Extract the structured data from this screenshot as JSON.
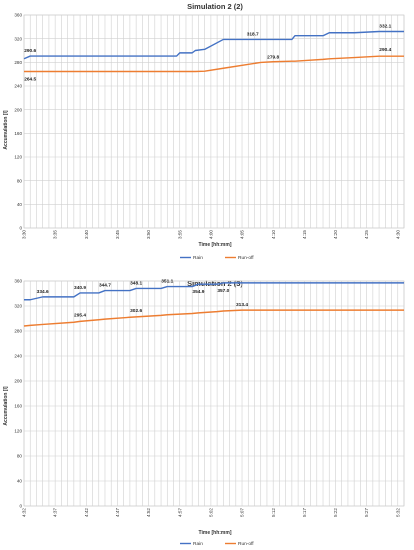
{
  "chart_data": [
    {
      "type": "line",
      "title": "Simulation 2 (2)",
      "xlabel": "Time [hh:mm]",
      "ylabel": "Accumulation [l]",
      "ylim": [
        0,
        360
      ],
      "yticks": [
        0,
        40,
        80,
        120,
        160,
        200,
        240,
        280,
        320,
        360
      ],
      "x_tick_labels": [
        "3:30",
        "3:35",
        "3:40",
        "3:45",
        "3:50",
        "3:55",
        "4:00",
        "4:05",
        "4:10",
        "4:15",
        "4:20",
        "4:25",
        "4:30"
      ],
      "x": [
        0,
        1,
        5,
        10,
        15,
        20,
        24.5,
        25,
        27,
        27.5,
        29,
        32,
        38,
        40,
        43,
        43.5,
        45,
        48,
        49,
        53,
        57,
        58,
        61
      ],
      "series": [
        {
          "name": "Rain",
          "color": "#4472c4",
          "values": [
            286,
            290.6,
            290.6,
            290.6,
            290.6,
            290.6,
            290.6,
            296,
            296,
            300,
            302,
            318.7,
            318.7,
            318.7,
            318.7,
            325,
            325,
            325,
            330,
            330,
            332.1,
            332.1,
            332.1
          ]
        },
        {
          "name": "Run-off",
          "color": "#ed7d31",
          "values": [
            264.5,
            264.5,
            264.5,
            264.5,
            264.5,
            264.5,
            264.5,
            264.5,
            264.5,
            264.5,
            265,
            270,
            279.8,
            281,
            282,
            282,
            283,
            285,
            286,
            288,
            290.4,
            290.4,
            290.4
          ]
        }
      ],
      "data_labels": [
        {
          "series": 0,
          "x": 1,
          "y": 290.6,
          "text": "290.6"
        },
        {
          "series": 1,
          "x": 1,
          "y": 264.5,
          "text": "264.5"
        },
        {
          "series": 0,
          "x": 38,
          "y": 318.7,
          "text": "318.7"
        },
        {
          "series": 1,
          "x": 40,
          "y": 279.8,
          "text": "279.8"
        },
        {
          "series": 0,
          "x": 58,
          "y": 332.1,
          "text": "332.1"
        },
        {
          "series": 1,
          "x": 58,
          "y": 290.4,
          "text": "290.4"
        }
      ],
      "legend_position": "bottom",
      "grid": true
    },
    {
      "type": "line",
      "title": "Simulation 2 (3)",
      "xlabel": "Time [hh:mm]",
      "ylabel": "Accumulation [l]",
      "ylim": [
        0,
        360
      ],
      "yticks": [
        0,
        40,
        80,
        120,
        160,
        200,
        240,
        280,
        320,
        360
      ],
      "x_tick_labels": [
        "4:32",
        "4:37",
        "4:42",
        "4:47",
        "4:52",
        "4:57",
        "5:02",
        "5:07",
        "5:12",
        "5:17",
        "5:22",
        "5:27",
        "5:32"
      ],
      "x": [
        0,
        1,
        3,
        8,
        9,
        12,
        13,
        17,
        18,
        22,
        23,
        27,
        28,
        31,
        32,
        35,
        36,
        40,
        45,
        50,
        55,
        60,
        61
      ],
      "series": [
        {
          "name": "Rain",
          "color": "#4472c4",
          "values": [
            330,
            330,
            334.6,
            334.6,
            340.9,
            340.9,
            344.7,
            344.7,
            348.1,
            348.1,
            351.1,
            351.1,
            354.9,
            354.9,
            357.0,
            357.0,
            357.0,
            357.0,
            357.0,
            357.0,
            357.0,
            357.0,
            357.0
          ]
        },
        {
          "name": "Run-off",
          "color": "#ed7d31",
          "values": [
            288,
            289,
            290.5,
            294,
            295.4,
            298,
            299,
            302,
            302.6,
            305,
            306,
            308,
            309,
            311,
            312,
            313.4,
            313.4,
            313.4,
            313.4,
            313.4,
            313.4,
            313.4,
            313.4
          ]
        }
      ],
      "data_labels": [
        {
          "series": 0,
          "x": 3,
          "y": 334.6,
          "text": "334.6"
        },
        {
          "series": 0,
          "x": 9,
          "y": 340.9,
          "text": "340.9"
        },
        {
          "series": 0,
          "x": 13,
          "y": 344.7,
          "text": "344.7"
        },
        {
          "series": 0,
          "x": 18,
          "y": 348.1,
          "text": "348.1"
        },
        {
          "series": 0,
          "x": 23,
          "y": 351.1,
          "text": "351.1"
        },
        {
          "series": 0,
          "x": 28,
          "y": 354.9,
          "text": "354.9"
        },
        {
          "series": 0,
          "x": 32,
          "y": 357.0,
          "text": "357.0"
        },
        {
          "series": 1,
          "x": 9,
          "y": 295.4,
          "text": "295.4"
        },
        {
          "series": 1,
          "x": 18,
          "y": 302.6,
          "text": "302.6"
        },
        {
          "series": 1,
          "x": 35,
          "y": 313.4,
          "text": "313.4"
        }
      ],
      "legend_position": "bottom",
      "grid": true
    }
  ]
}
